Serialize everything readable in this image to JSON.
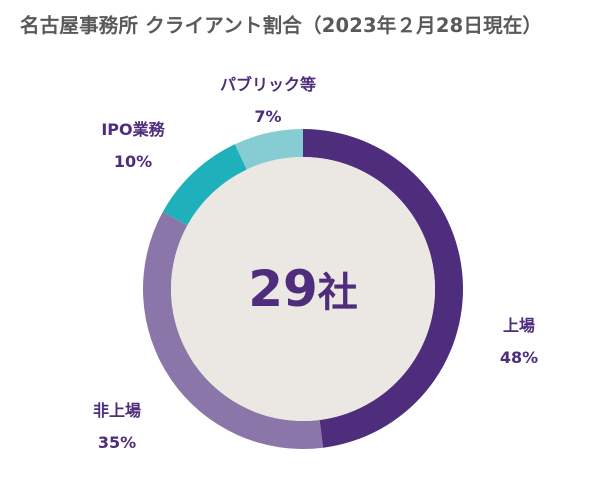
{
  "chart_data": {
    "type": "pie",
    "title": "名古屋事務所 クライアント割合（2023年２月28日現在）",
    "center_value": "29",
    "center_unit": "社",
    "slices": [
      {
        "label": "上場",
        "value": 48,
        "value_label": "48%",
        "color": "#4e2d7d"
      },
      {
        "label": "非上場",
        "value": 35,
        "value_label": "35%",
        "color": "#8a76a8"
      },
      {
        "label": "IPO業務",
        "value": 10,
        "value_label": "10%",
        "color": "#1eb0bb"
      },
      {
        "label": "パブリック等",
        "value": 7,
        "value_label": "7%",
        "color": "#86cdd3"
      }
    ],
    "label_color": "#4e2d7d",
    "center_color": "#ebe7e2"
  }
}
